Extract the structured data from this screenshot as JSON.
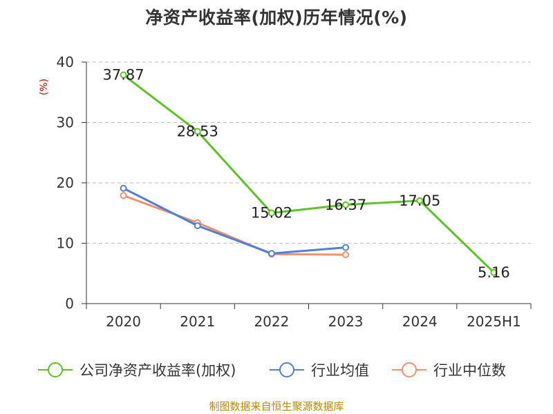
{
  "chart_data": {
    "type": "line",
    "title": "净资产收益率(加权)历年情况(%)",
    "ylabel": "(%)",
    "xlabel": "",
    "categories": [
      "2020",
      "2021",
      "2022",
      "2023",
      "2024",
      "2025H1"
    ],
    "ylim": [
      0,
      40
    ],
    "yticks": [
      0,
      10,
      20,
      30,
      40
    ],
    "grid": true,
    "legend_position": "bottom",
    "series": [
      {
        "name": "公司净资产收益率(加权)",
        "color": "#5cc226",
        "values": [
          37.87,
          28.53,
          15.02,
          16.37,
          17.05,
          5.16
        ],
        "labels": [
          "37.87",
          "28.53",
          "15.02",
          "16.37",
          "17.05",
          "5.16"
        ]
      },
      {
        "name": "行业均值",
        "color": "#4f7fd6",
        "values": [
          19.1,
          12.9,
          8.3,
          9.3,
          null,
          null
        ]
      },
      {
        "name": "行业中位数",
        "color": "#f29168",
        "values": [
          17.9,
          13.4,
          8.2,
          8.1,
          null,
          null
        ]
      }
    ]
  },
  "source": "制图数据来自恒生聚源数据库",
  "colors": {
    "ylabel": "#cc0000",
    "axis": "#333333",
    "grid": "#bbbbbb",
    "source": "#b8860b"
  }
}
